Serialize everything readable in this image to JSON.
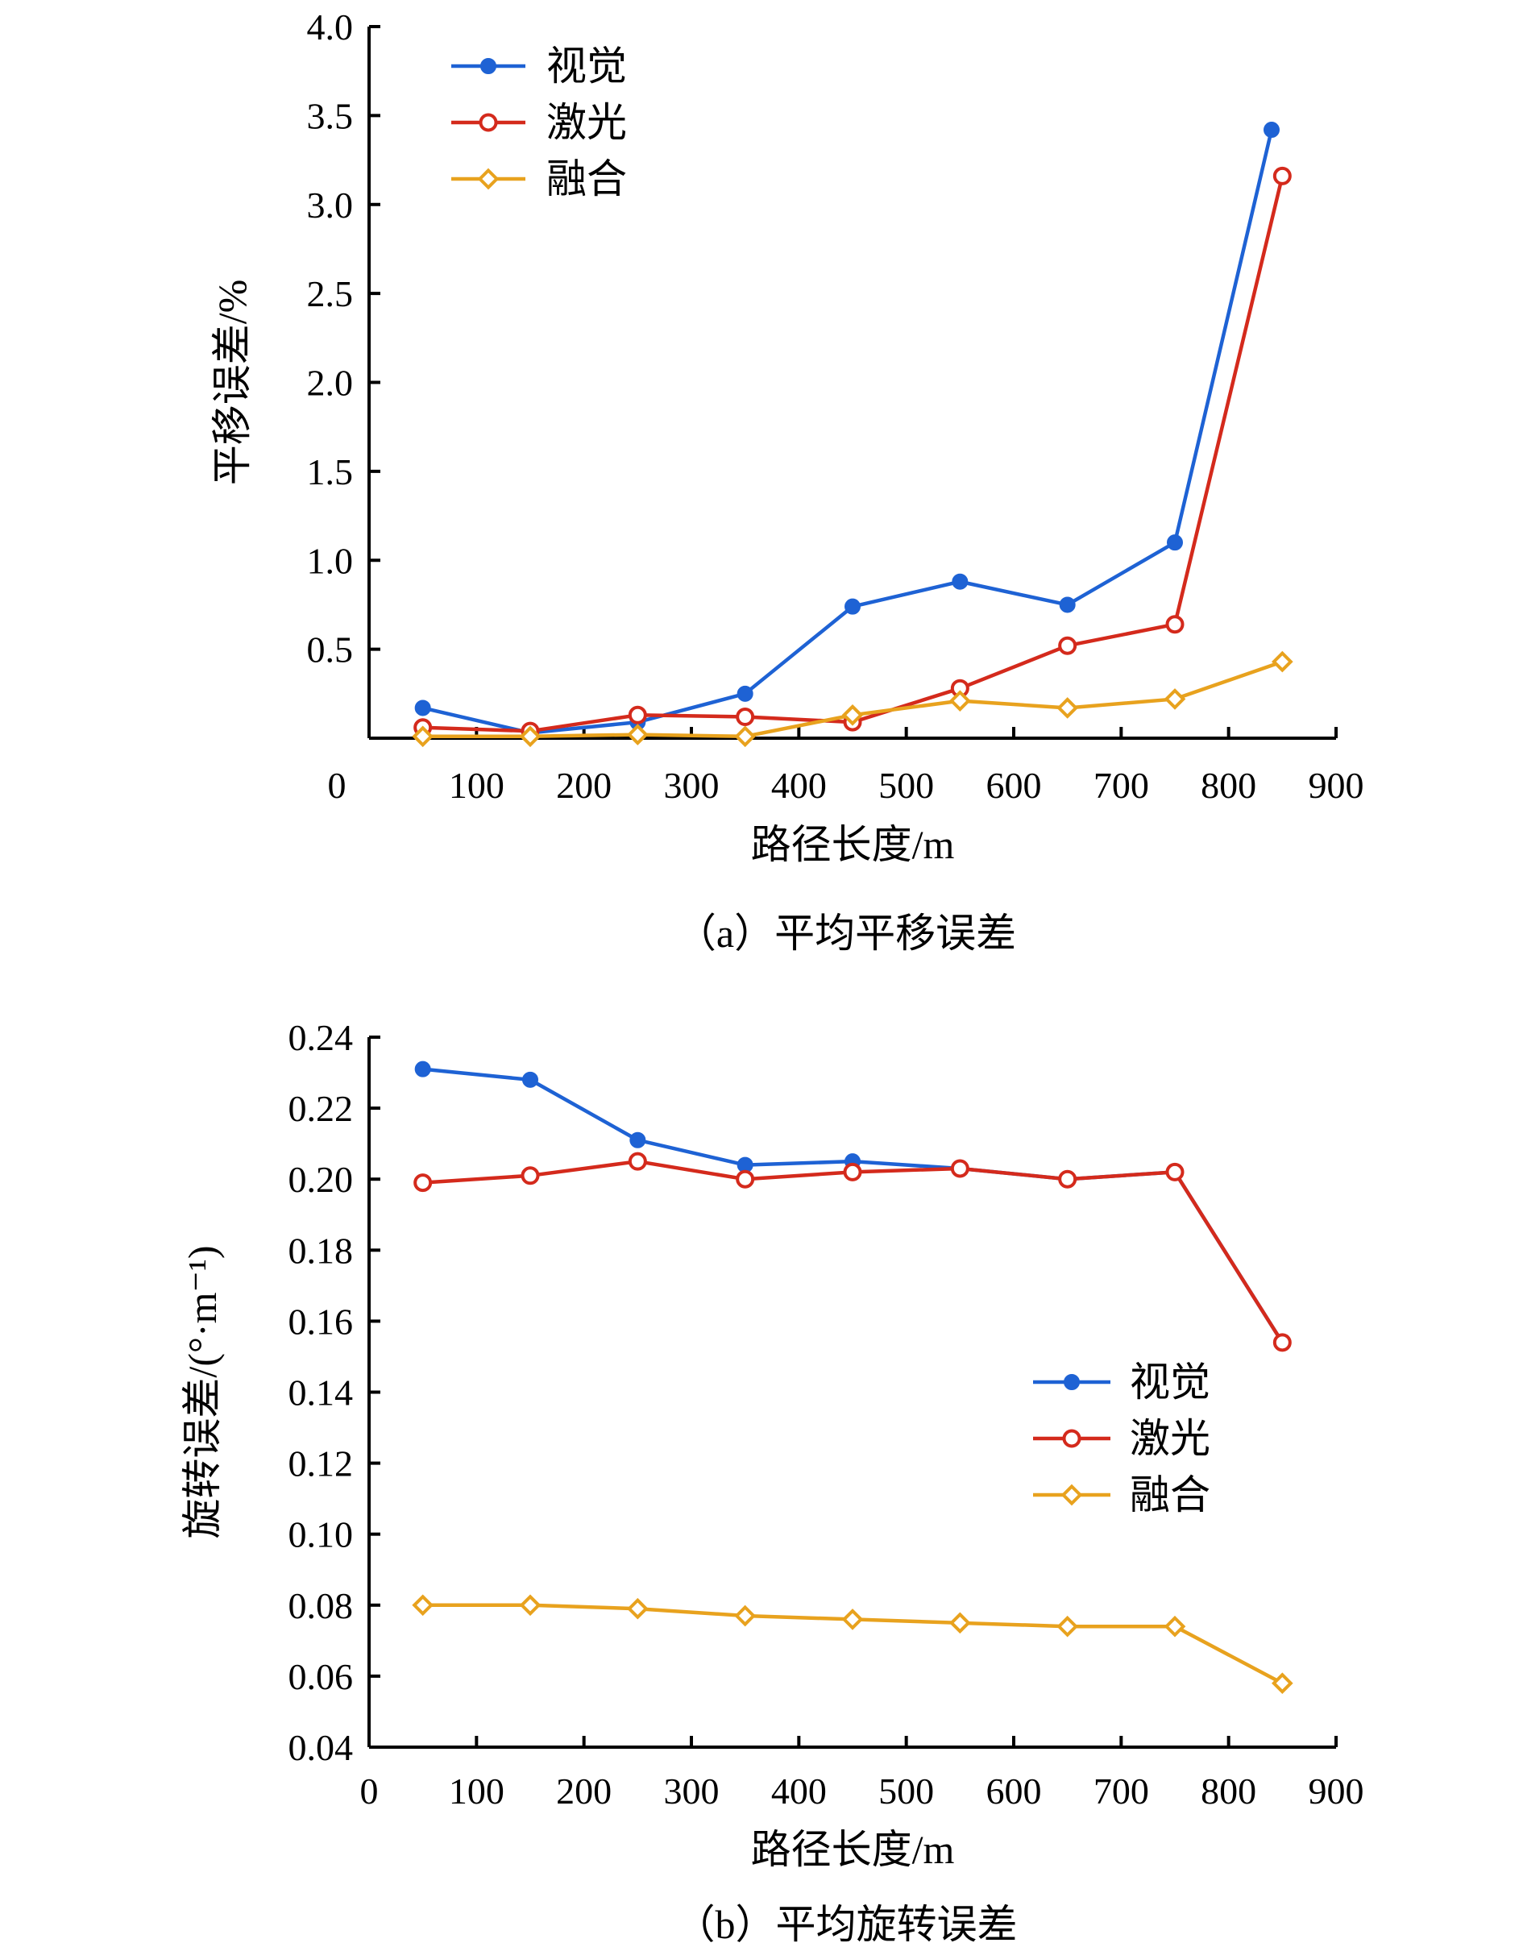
{
  "colors": {
    "vision": "#1e62d4",
    "laser": "#d42a1c",
    "fusion": "#e8a21e",
    "axis": "#000000"
  },
  "chart_data": [
    {
      "type": "line",
      "caption": "（a）平均平移误差",
      "xlabel": "路径长度/m",
      "ylabel": "平移误差/%",
      "xlim": [
        0,
        900
      ],
      "ylim": [
        0,
        4.0
      ],
      "xticks": [
        0,
        100,
        200,
        300,
        400,
        500,
        600,
        700,
        800,
        900
      ],
      "xtick_labels": [
        "0",
        "100",
        "200",
        "300",
        "400",
        "500",
        "600",
        "700",
        "800",
        "900"
      ],
      "yticks": [
        0.5,
        1.0,
        1.5,
        2.0,
        2.5,
        3.0,
        3.5,
        4.0
      ],
      "ytick_labels": [
        "0.5",
        "1.0",
        "1.5",
        "2.0",
        "2.5",
        "3.0",
        "3.5",
        "4.0"
      ],
      "legend": "top-left",
      "grid": false,
      "series": [
        {
          "name": "视觉",
          "marker": "dot",
          "x": [
            50,
            150,
            250,
            350,
            450,
            550,
            650,
            750,
            840
          ],
          "y": [
            0.17,
            0.03,
            0.09,
            0.25,
            0.74,
            0.88,
            0.75,
            1.1,
            3.42
          ]
        },
        {
          "name": "激光",
          "marker": "circle",
          "x": [
            50,
            150,
            250,
            350,
            450,
            550,
            650,
            750,
            850
          ],
          "y": [
            0.06,
            0.04,
            0.13,
            0.12,
            0.09,
            0.28,
            0.52,
            0.64,
            3.16
          ]
        },
        {
          "name": "融合",
          "marker": "diamond",
          "x": [
            50,
            150,
            250,
            350,
            450,
            550,
            650,
            750,
            850
          ],
          "y": [
            0.01,
            0.01,
            0.02,
            0.01,
            0.13,
            0.21,
            0.17,
            0.22,
            0.43
          ]
        }
      ]
    },
    {
      "type": "line",
      "caption": "（b）平均旋转误差",
      "xlabel": "路径长度/m",
      "ylabel": "旋转误差/(°·m⁻¹)",
      "xlim": [
        0,
        900
      ],
      "ylim": [
        0.04,
        0.24
      ],
      "xticks": [
        0,
        100,
        200,
        300,
        400,
        500,
        600,
        700,
        800,
        900
      ],
      "xtick_labels": [
        "0",
        "100",
        "200",
        "300",
        "400",
        "500",
        "600",
        "700",
        "800",
        "900"
      ],
      "yticks": [
        0.04,
        0.06,
        0.08,
        0.1,
        0.12,
        0.14,
        0.16,
        0.18,
        0.2,
        0.22,
        0.24
      ],
      "ytick_labels": [
        "0.04",
        "0.06",
        "0.08",
        "0.10",
        "0.12",
        "0.14",
        "0.16",
        "0.18",
        "0.20",
        "0.22",
        "0.24"
      ],
      "legend": "center-right",
      "grid": false,
      "series": [
        {
          "name": "视觉",
          "marker": "dot",
          "x": [
            50,
            150,
            250,
            350,
            450,
            550,
            650,
            750,
            850
          ],
          "y": [
            0.231,
            0.228,
            0.211,
            0.204,
            0.205,
            0.203,
            0.2,
            0.202,
            0.154
          ]
        },
        {
          "name": "激光",
          "marker": "circle",
          "x": [
            50,
            150,
            250,
            350,
            450,
            550,
            650,
            750,
            850
          ],
          "y": [
            0.199,
            0.201,
            0.205,
            0.2,
            0.202,
            0.203,
            0.2,
            0.202,
            0.154
          ]
        },
        {
          "name": "融合",
          "marker": "diamond",
          "x": [
            50,
            150,
            250,
            350,
            450,
            550,
            650,
            750,
            850
          ],
          "y": [
            0.08,
            0.08,
            0.079,
            0.077,
            0.076,
            0.075,
            0.074,
            0.074,
            0.058
          ]
        }
      ]
    }
  ]
}
